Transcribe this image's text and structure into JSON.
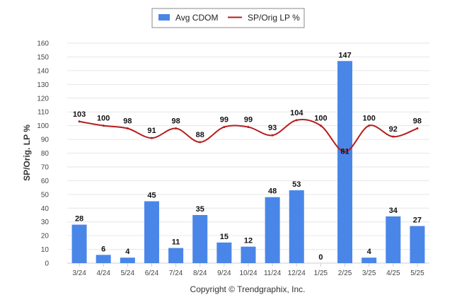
{
  "chart_data": {
    "type": "bar",
    "categories": [
      "3/24",
      "4/24",
      "5/24",
      "6/24",
      "7/24",
      "8/24",
      "9/24",
      "10/24",
      "11/24",
      "12/24",
      "1/25",
      "2/25",
      "3/25",
      "4/25",
      "5/25"
    ],
    "series": [
      {
        "name": "Avg CDOM",
        "type": "bar",
        "color": "#4a86e8",
        "values": [
          28,
          6,
          4,
          45,
          11,
          35,
          15,
          12,
          48,
          53,
          0,
          147,
          4,
          34,
          27
        ]
      },
      {
        "name": "SP/Orig LP %",
        "type": "line",
        "color": "#b71c1c",
        "values": [
          103,
          100,
          98,
          91,
          98,
          88,
          99,
          99,
          93,
          104,
          100,
          81,
          100,
          92,
          98
        ]
      }
    ],
    "ylabel": "SP/Orig. LP %",
    "yticks": [
      0,
      10,
      20,
      30,
      40,
      50,
      60,
      70,
      80,
      90,
      100,
      110,
      120,
      130,
      140,
      150,
      160
    ],
    "ylim": [
      0,
      160
    ],
    "grid": true,
    "legend_placement": "top-center"
  },
  "footer": {
    "copyright": "Copyright © Trendgraphix, Inc."
  }
}
